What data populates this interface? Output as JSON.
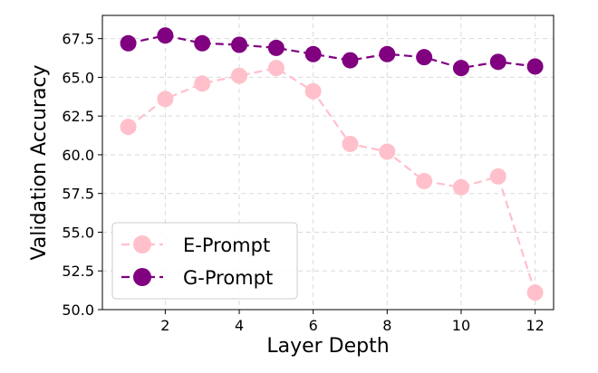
{
  "chart_data": {
    "type": "line",
    "title": "",
    "xlabel": "Layer Depth",
    "ylabel": "Validation Accuracy",
    "x": [
      1,
      2,
      3,
      4,
      5,
      6,
      7,
      8,
      9,
      10,
      11,
      12
    ],
    "xticks": [
      2,
      4,
      6,
      8,
      10,
      12
    ],
    "xtick_labels": [
      "2",
      "4",
      "6",
      "8",
      "10",
      "12"
    ],
    "xlim": [
      0.3,
      12.5
    ],
    "yticks": [
      50.0,
      52.5,
      55.0,
      57.5,
      60.0,
      62.5,
      65.0,
      67.5
    ],
    "ytick_labels": [
      "50.0",
      "52.5",
      "55.0",
      "57.5",
      "60.0",
      "62.5",
      "65.0",
      "67.5"
    ],
    "ylim": [
      50.0,
      69.0
    ],
    "grid": true,
    "legend_position": "bottom-left",
    "series": [
      {
        "name": "E-Prompt",
        "color": "#ffc0cb",
        "values": [
          61.8,
          63.6,
          64.6,
          65.1,
          65.6,
          64.1,
          60.7,
          60.2,
          58.3,
          57.9,
          58.6,
          51.1
        ]
      },
      {
        "name": "G-Prompt",
        "color": "#800080",
        "values": [
          67.2,
          67.7,
          67.2,
          67.1,
          66.9,
          66.5,
          66.1,
          66.5,
          66.3,
          65.6,
          66.0,
          65.7
        ]
      }
    ]
  }
}
